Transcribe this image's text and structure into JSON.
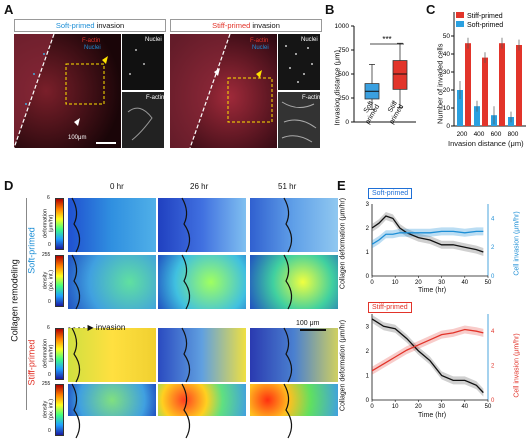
{
  "panels": {
    "a": "A",
    "b": "B",
    "c": "C",
    "d": "D",
    "e": "E"
  },
  "panel_a": {
    "left": {
      "title_colored": "Soft-primed",
      "title_rest": " invasion",
      "label_factin": "F-actin",
      "label_nuclei": "Nuclei",
      "inset_top": "Nuclei",
      "inset_bottom": "F-actin",
      "scale": "100μm"
    },
    "right": {
      "title_colored": "Stiff-primed",
      "title_rest": " invasion",
      "label_factin": "F-actin",
      "label_nuclei": "Nuclei",
      "inset_top": "Nuclei",
      "inset_bottom": "F-actin"
    }
  },
  "panel_b": {
    "ylabel": "Invasion distance (μm)",
    "yticks": [
      "0",
      "250",
      "500",
      "750",
      "1000"
    ],
    "significance": "***",
    "categories": [
      "Soft\nprimed",
      "Stiff\nprimed"
    ],
    "colors": {
      "soft": "#3aa0e0",
      "stiff": "#e2342a"
    }
  },
  "panel_c": {
    "ylabel": "Number of invaded cells",
    "xlabel": "Invasion distance (μm)",
    "yticks": [
      "0",
      "10",
      "20",
      "30",
      "40",
      "50"
    ],
    "xticks": [
      "200",
      "400",
      "600",
      "800"
    ],
    "legend": [
      "Stiff-primed",
      "Soft-primed"
    ]
  },
  "panel_d": {
    "times": [
      "0 hr",
      "26 hr",
      "51 hr"
    ],
    "side_label": "Collagen remodeling",
    "soft_label": "Soft-primed",
    "stiff_label": "Stiff-primed",
    "deform_label": "deformation\n(μm/hr)",
    "density_label": "density\n(pix. int.)",
    "deform_max": "6",
    "deform_min": "0",
    "density_max": "255",
    "density_min": "0",
    "invasion": "invasion",
    "scale": "100 μm"
  },
  "panel_e": {
    "soft_title": "Soft-primed",
    "stiff_title": "Stiff-primed",
    "ylabel_left": "Collagen deformation (μm/hr)",
    "ylabel_right": "Cell invasion (μm/hr)",
    "xlabel": "Time (hr)",
    "xticks": [
      "0",
      "10",
      "20",
      "30",
      "40",
      "50"
    ],
    "yticks_left": [
      "0",
      "1",
      "2",
      "3"
    ],
    "yticks_right": [
      "0",
      "2",
      "4"
    ]
  },
  "chart_data": [
    {
      "type": "box",
      "categories": [
        "Soft primed",
        "Stiff primed"
      ],
      "ylabel": "Invasion distance (μm)",
      "ylim": [
        0,
        1000
      ],
      "boxes": [
        {
          "name": "Soft primed",
          "whisker_low": 130,
          "q1": 240,
          "median": 320,
          "q3": 400,
          "whisker_high": 600
        },
        {
          "name": "Stiff primed",
          "whisker_low": 150,
          "q1": 340,
          "median": 500,
          "q3": 640,
          "whisker_high": 820
        }
      ]
    },
    {
      "type": "bar",
      "categories": [
        "200",
        "400",
        "600",
        "800"
      ],
      "ylim": [
        0,
        50
      ],
      "series": [
        {
          "name": "Stiff-primed",
          "values": [
            46,
            38,
            46,
            45
          ],
          "errors": [
            3,
            3,
            3,
            3
          ]
        },
        {
          "name": "Soft-primed",
          "values": [
            20,
            11,
            6,
            5
          ],
          "errors": [
            5,
            3,
            5,
            3
          ]
        }
      ]
    },
    {
      "type": "line",
      "title": "Soft-primed",
      "xlim": [
        0,
        50
      ],
      "series": [
        {
          "name": "Collagen deformation",
          "x": [
            0,
            3,
            6,
            9,
            12,
            15,
            20,
            25,
            30,
            35,
            40,
            45,
            48
          ],
          "y": [
            2.0,
            2.2,
            2.5,
            2.4,
            2.0,
            1.8,
            1.6,
            1.5,
            1.3,
            1.3,
            1.2,
            1.1,
            1.0
          ]
        },
        {
          "name": "Cell invasion",
          "x": [
            0,
            3,
            6,
            9,
            12,
            15,
            20,
            25,
            30,
            35,
            40,
            45,
            48
          ],
          "y": [
            2.2,
            2.5,
            2.9,
            2.9,
            3.0,
            3.0,
            3.0,
            3.0,
            3.1,
            3.1,
            3.0,
            3.1,
            3.1
          ]
        }
      ]
    },
    {
      "type": "line",
      "title": "Stiff-primed",
      "xlim": [
        0,
        50
      ],
      "series": [
        {
          "name": "Collagen deformation",
          "x": [
            0,
            5,
            10,
            15,
            20,
            25,
            30,
            35,
            40,
            45,
            48
          ],
          "y": [
            3.3,
            3.0,
            2.9,
            2.5,
            2.0,
            1.6,
            1.0,
            0.8,
            0.8,
            0.6,
            0.3
          ]
        },
        {
          "name": "Cell invasion",
          "x": [
            0,
            5,
            10,
            15,
            20,
            25,
            30,
            35,
            40,
            45,
            48
          ],
          "y": [
            1.7,
            2.1,
            2.5,
            2.9,
            3.2,
            3.5,
            3.8,
            3.9,
            4.1,
            4.0,
            3.9
          ]
        }
      ]
    }
  ]
}
